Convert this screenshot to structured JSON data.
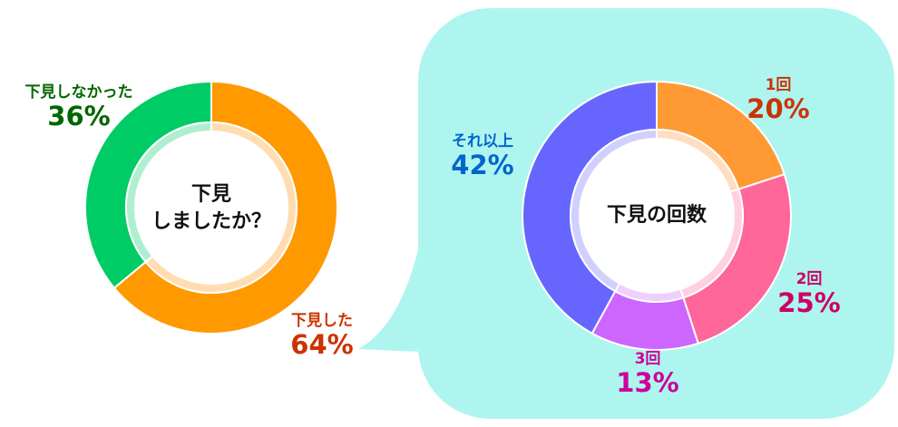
{
  "chart_data": [
    {
      "type": "pie",
      "variant": "donut",
      "title": "下見しましたか？",
      "categories": [
        "下見した",
        "下見しなかった"
      ],
      "values": [
        64,
        36
      ],
      "unit": "%",
      "colors": [
        "#FF9900",
        "#00CC66"
      ],
      "inner_colors": [
        "#FFDDB0",
        "#B0EED0"
      ],
      "label_colors": [
        "#CC3300",
        "#006600"
      ]
    },
    {
      "type": "pie",
      "variant": "donut",
      "title": "下見の回数",
      "categories": [
        "1回",
        "2回",
        "3回",
        "それ以上"
      ],
      "values": [
        20,
        25,
        13,
        42
      ],
      "unit": "%",
      "colors": [
        "#FF9933",
        "#FF6699",
        "#CC66FF",
        "#6666FF"
      ],
      "inner_colors": [
        "#FFDDC0",
        "#FFD0E0",
        "#EED0FF",
        "#D0D0FF"
      ],
      "label_colors": [
        "#CC3300",
        "#CC0066",
        "#CC0099",
        "#0066CC"
      ]
    }
  ],
  "left": {
    "center_line1": "下見",
    "center_line2": "しましたか？",
    "labels": [
      {
        "name": "下見した",
        "pct": "64%"
      },
      {
        "name": "下見しなかった",
        "pct": "36%"
      }
    ]
  },
  "right": {
    "center": "下見の回数",
    "labels": [
      {
        "name": "1回",
        "pct": "20%"
      },
      {
        "name": "2回",
        "pct": "25%"
      },
      {
        "name": "3回",
        "pct": "13%"
      },
      {
        "name": "それ以上",
        "pct": "42%"
      }
    ]
  },
  "callout_color": "#AFF5EF"
}
